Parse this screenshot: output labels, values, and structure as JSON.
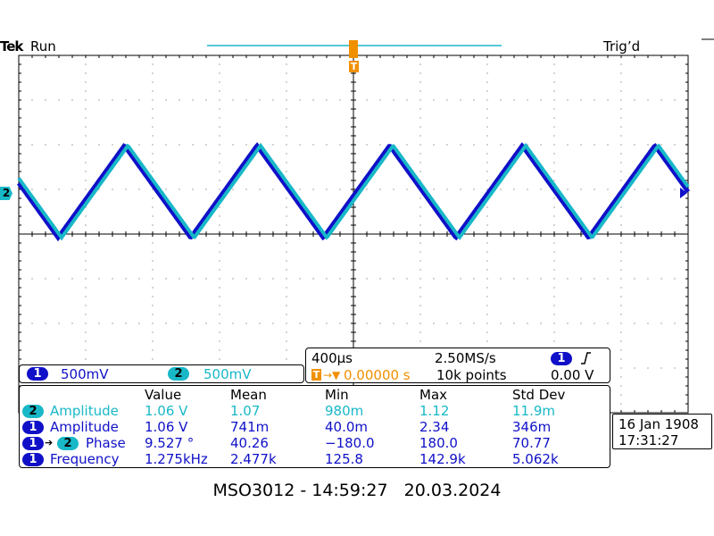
{
  "header": {
    "brand": "Tek",
    "state": "Run",
    "trigger_status": "Trig’d",
    "trigger_marker": "T"
  },
  "channel_marker": "2",
  "channels": [
    {
      "id": "1",
      "scale": "500mV",
      "color": "#1010c8"
    },
    {
      "id": "2",
      "scale": "500mV",
      "color": "#18b8c8"
    }
  ],
  "timebase": {
    "horizontal": "400µs",
    "sample_rate": "2.50MS/s",
    "trigger_icon": "T",
    "trigger_delay": "0.00000 s",
    "record_length": "10k points",
    "trigger_source": "1",
    "trigger_level": "0.00 V",
    "trigger_slope_icon": "rising-edge-icon"
  },
  "measurements": {
    "headers": [
      "Value",
      "Mean",
      "Min",
      "Max",
      "Std Dev"
    ],
    "rows": [
      {
        "src": "2",
        "src2": "",
        "name": "Amplitude",
        "color": "cyan",
        "values": [
          "1.06 V",
          "1.07",
          "980m",
          "1.12",
          "11.9m"
        ]
      },
      {
        "src": "1",
        "src2": "",
        "name": "Amplitude",
        "color": "blue",
        "values": [
          "1.06 V",
          "741m",
          "40.0m",
          "2.34",
          "346m"
        ]
      },
      {
        "src": "1",
        "src2": "2",
        "name": "Phase",
        "color": "blue",
        "values": [
          "9.527 °",
          "40.26",
          "−180.0",
          "180.0",
          "70.77"
        ]
      },
      {
        "src": "1",
        "src2": "",
        "name": "Frequency",
        "color": "blue",
        "values": [
          "1.275kHz",
          "2.477k",
          "125.8",
          "142.9k",
          "5.062k"
        ]
      }
    ]
  },
  "datetime": {
    "date": "16 Jan  1908",
    "time": "17:31:27"
  },
  "footer": "MSO3012 - 14:59:27   20.03.2024",
  "colors": {
    "ch1": "#1010c8",
    "ch2": "#18b8c8",
    "trigger": "#f09000"
  }
}
